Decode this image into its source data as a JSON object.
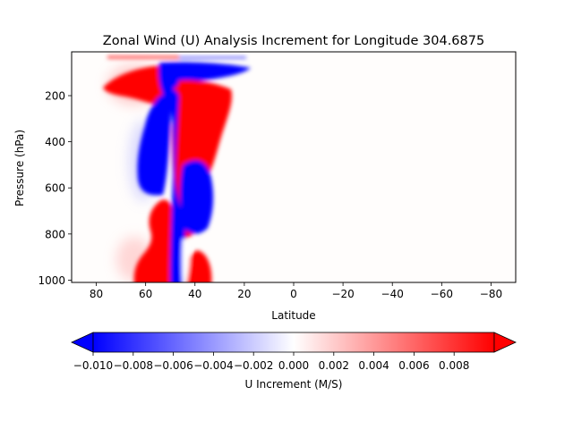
{
  "chart_data": {
    "type": "heatmap",
    "title": "Zonal Wind (U) Analysis Increment for Longitude 304.6875",
    "xlabel": "Latitude",
    "ylabel": "Pressure (hPa)",
    "xlim": [
      90,
      -90
    ],
    "ylim": [
      1010,
      10
    ],
    "x_ticks": [
      80,
      60,
      40,
      20,
      0,
      -20,
      -40,
      -60,
      -80
    ],
    "x_tick_labels": [
      "80",
      "60",
      "40",
      "20",
      "0",
      "−20",
      "−40",
      "−60",
      "−80"
    ],
    "y_ticks": [
      200,
      400,
      600,
      800,
      1000
    ],
    "y_tick_labels": [
      "200",
      "400",
      "600",
      "800",
      "1000"
    ],
    "y_inverted": true,
    "grid": false,
    "colormap": "bwr",
    "colors": {
      "negative": "#0000ff",
      "zero": "#ffffff",
      "positive": "#ff0000"
    },
    "colorbar": {
      "label": "U Increment (M/S)",
      "vmin": -0.01,
      "vmax": 0.01,
      "extend": "both",
      "orientation": "horizontal",
      "ticks": [
        -0.01,
        -0.008,
        -0.006,
        -0.004,
        -0.002,
        0.0,
        0.002,
        0.004,
        0.006,
        0.008
      ],
      "tick_labels": [
        "−0.010",
        "−0.008",
        "−0.006",
        "−0.004",
        "−0.002",
        "0.000",
        "0.002",
        "0.004",
        "0.006",
        "0.008"
      ]
    },
    "features": [
      {
        "sign": "positive",
        "lat_range": [
          70,
          40
        ],
        "pressure_range": [
          60,
          130
        ],
        "note": "upper-level positive lobe"
      },
      {
        "sign": "negative",
        "lat_range": [
          52,
          30
        ],
        "pressure_range": [
          60,
          110
        ],
        "note": "upper-level negative lobe"
      },
      {
        "sign": "negative",
        "lat_range": [
          52,
          46
        ],
        "pressure_range": [
          110,
          1000
        ],
        "note": "narrow negative column"
      },
      {
        "sign": "negative",
        "lat_range": [
          62,
          52
        ],
        "pressure_range": [
          230,
          610
        ],
        "note": "mid-level negative blob"
      },
      {
        "sign": "positive",
        "lat_range": [
          48,
          34
        ],
        "pressure_range": [
          100,
          460
        ],
        "note": "positive column"
      },
      {
        "sign": "negative",
        "lat_range": [
          49,
          34
        ],
        "pressure_range": [
          470,
          850
        ],
        "note": "lower negative blob"
      },
      {
        "sign": "positive",
        "lat_range": [
          65,
          50
        ],
        "pressure_range": [
          620,
          1000
        ],
        "note": "lower positive region"
      },
      {
        "sign": "positive",
        "lat_range": [
          46,
          36
        ],
        "pressure_range": [
          860,
          1000
        ],
        "note": "surface positive blob"
      }
    ]
  }
}
